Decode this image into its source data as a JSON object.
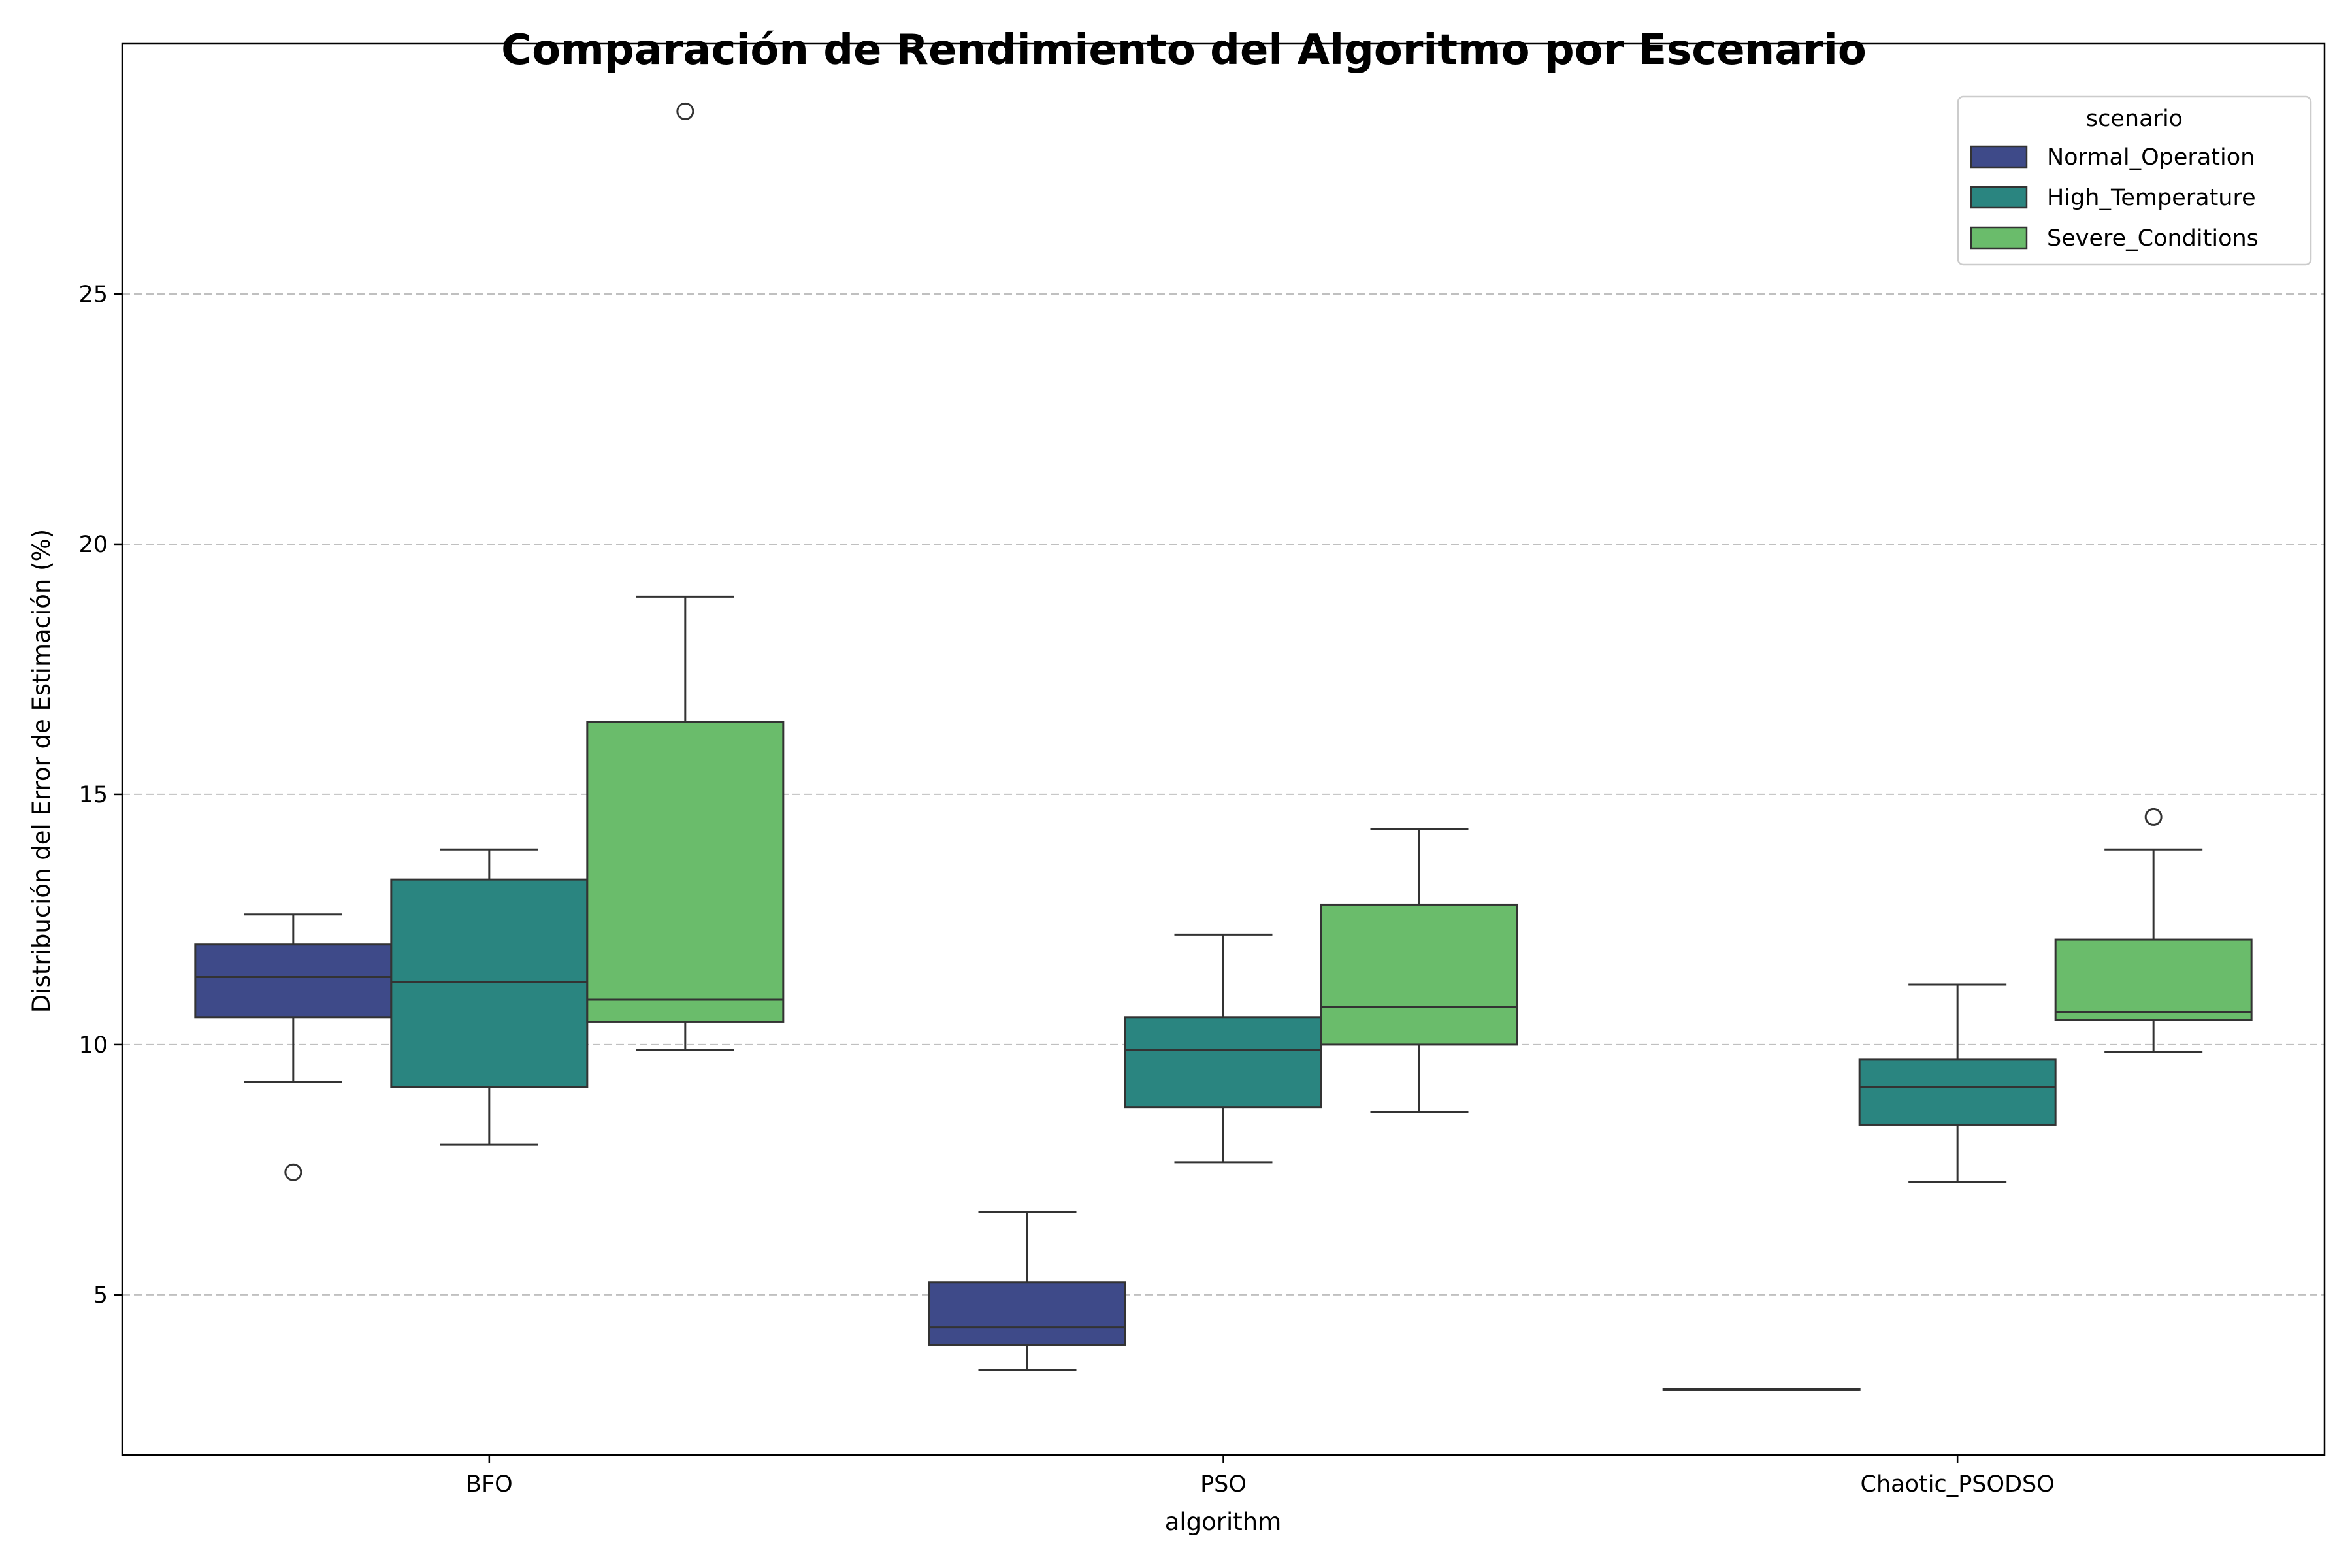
{
  "chart_data": {
    "type": "box",
    "title": "Comparación de Rendimiento del Algoritmo por Escenario",
    "xlabel": "algorithm",
    "ylabel": "Distribución del Error de Estimación (%)",
    "categories": [
      "BFO",
      "PSO",
      "Chaotic_PSODSO"
    ],
    "ylim": [
      1.8,
      30.0
    ],
    "yticks": [
      5,
      10,
      15,
      20,
      25
    ],
    "grid": "y-dashed",
    "legend": {
      "title": "scenario",
      "placement": "top-right"
    },
    "series": [
      {
        "name": "Normal_Operation",
        "color": "#3e4a89",
        "boxes": [
          {
            "category": "BFO",
            "whisker_low": 9.25,
            "q1": 10.55,
            "median": 11.35,
            "q3": 12.0,
            "whisker_high": 12.6,
            "outliers": [
              7.45
            ]
          },
          {
            "category": "PSO",
            "whisker_low": 3.5,
            "q1": 4.0,
            "median": 4.35,
            "q3": 5.25,
            "whisker_high": 6.65,
            "outliers": []
          },
          {
            "category": "Chaotic_PSODSO",
            "whisker_low": 3.1,
            "q1": 3.1,
            "median": 3.1,
            "q3": 3.12,
            "whisker_high": 3.12,
            "outliers": []
          }
        ]
      },
      {
        "name": "High_Temperature",
        "color": "#2a8580",
        "boxes": [
          {
            "category": "BFO",
            "whisker_low": 8.0,
            "q1": 9.15,
            "median": 11.25,
            "q3": 13.3,
            "whisker_high": 13.9,
            "outliers": []
          },
          {
            "category": "PSO",
            "whisker_low": 7.65,
            "q1": 8.75,
            "median": 9.9,
            "q3": 10.55,
            "whisker_high": 12.2,
            "outliers": []
          },
          {
            "category": "Chaotic_PSODSO",
            "whisker_low": 7.25,
            "q1": 8.4,
            "median": 9.15,
            "q3": 9.7,
            "whisker_high": 11.2,
            "outliers": []
          }
        ]
      },
      {
        "name": "Severe_Conditions",
        "color": "#6abc6b",
        "boxes": [
          {
            "category": "BFO",
            "whisker_low": 9.9,
            "q1": 10.45,
            "median": 10.9,
            "q3": 16.45,
            "whisker_high": 18.95,
            "outliers": [
              28.65
            ]
          },
          {
            "category": "PSO",
            "whisker_low": 8.65,
            "q1": 10.0,
            "median": 10.75,
            "q3": 12.8,
            "whisker_high": 14.3,
            "outliers": []
          },
          {
            "category": "Chaotic_PSODSO",
            "whisker_low": 9.85,
            "q1": 10.5,
            "median": 10.65,
            "q3": 12.1,
            "whisker_high": 13.9,
            "outliers": [
              14.55
            ]
          }
        ]
      }
    ]
  }
}
